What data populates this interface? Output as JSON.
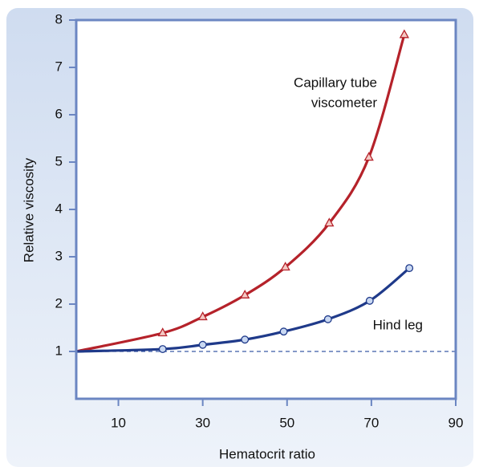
{
  "chart_data": {
    "type": "line",
    "xlabel": "Hematocrit ratio",
    "ylabel": "Relative viscosity",
    "xlim": [
      0,
      90
    ],
    "ylim": [
      0,
      8
    ],
    "xticks": [
      10,
      30,
      50,
      70,
      90
    ],
    "yticks": [
      1,
      2,
      3,
      4,
      5,
      6,
      7,
      8
    ],
    "reference_line": 1,
    "series": [
      {
        "name": "Capillary tube viscometer",
        "label_lines": [
          "Capillary tube",
          "viscometer"
        ],
        "color": "#b5222a",
        "marker": "triangle",
        "x": [
          0,
          20.5,
          30,
          40,
          49.6,
          60,
          69.4,
          77.8
        ],
        "values": [
          1,
          1.39,
          1.73,
          2.19,
          2.78,
          3.71,
          5.1,
          7.69
        ]
      },
      {
        "name": "Hind leg",
        "label_lines": [
          "Hind leg"
        ],
        "color": "#1f3a8a",
        "marker": "circle",
        "x": [
          0,
          20.5,
          30,
          40,
          49.2,
          59.7,
          69.6,
          79
        ],
        "values": [
          1,
          1.05,
          1.14,
          1.25,
          1.42,
          1.68,
          2.07,
          2.76
        ]
      }
    ]
  }
}
